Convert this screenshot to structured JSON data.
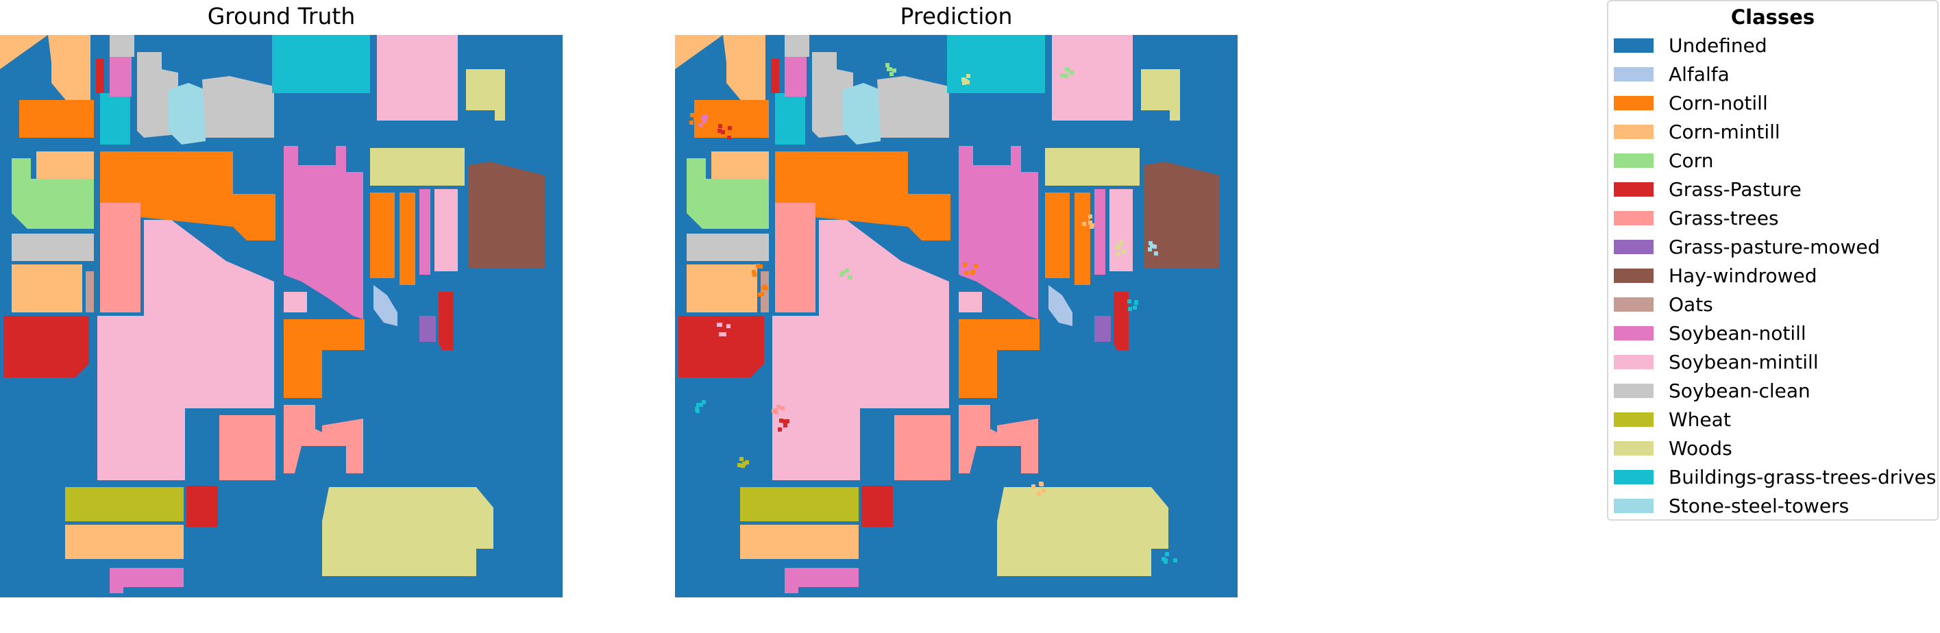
{
  "panels": {
    "ground_truth_title": "Ground Truth",
    "prediction_title": "Prediction"
  },
  "legend": {
    "title": "Classes",
    "items": [
      {
        "label": "Undefined",
        "color": "#1f77b4"
      },
      {
        "label": "Alfalfa",
        "color": "#aec7e8"
      },
      {
        "label": "Corn-notill",
        "color": "#ff7f0e"
      },
      {
        "label": "Corn-mintill",
        "color": "#ffbb78"
      },
      {
        "label": "Corn",
        "color": "#98df8a"
      },
      {
        "label": "Grass-Pasture",
        "color": "#d62728"
      },
      {
        "label": "Grass-trees",
        "color": "#ff9896"
      },
      {
        "label": "Grass-pasture-mowed",
        "color": "#9467bd"
      },
      {
        "label": "Hay-windrowed",
        "color": "#8c564b"
      },
      {
        "label": "Oats",
        "color": "#c49c94"
      },
      {
        "label": "Soybean-notill",
        "color": "#e377c2"
      },
      {
        "label": "Soybean-mintill",
        "color": "#f7b6d2"
      },
      {
        "label": "Soybean-clean",
        "color": "#c7c7c7"
      },
      {
        "label": "Wheat",
        "color": "#bcbd22"
      },
      {
        "label": "Woods",
        "color": "#dbdb8d"
      },
      {
        "label": "Buildings-grass-trees-drives",
        "color": "#17becf"
      },
      {
        "label": "Stone-steel-towers",
        "color": "#9edae5"
      }
    ]
  }
}
